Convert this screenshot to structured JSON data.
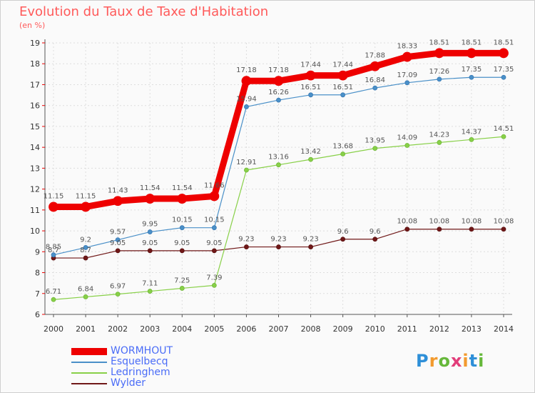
{
  "title": "Evolution du Taux de Taxe d'Habitation",
  "subtitle": "(en %)",
  "logo": {
    "text": "Proxiti",
    "colors": [
      "#2e8fd8",
      "#f29a2e",
      "#66b83b",
      "#e23d7a",
      "#f29a2e",
      "#2e8fd8",
      "#66b83b"
    ]
  },
  "chart_data": {
    "type": "line",
    "x": [
      "2000",
      "2001",
      "2002",
      "2003",
      "2004",
      "2005",
      "2006",
      "2007",
      "2008",
      "2009",
      "2010",
      "2011",
      "2012",
      "2013",
      "2014"
    ],
    "ylim": [
      6,
      19
    ],
    "yticks": [
      "6",
      "7",
      "8",
      "9",
      "10",
      "11",
      "12",
      "13",
      "14",
      "15",
      "16",
      "17",
      "18",
      "19"
    ],
    "grid": true,
    "legend_position": "bottom-left",
    "series": [
      {
        "name": "WORMHOUT",
        "color": "#ee0000",
        "values": [
          11.15,
          11.15,
          11.43,
          11.54,
          11.54,
          11.66,
          17.18,
          17.18,
          17.44,
          17.44,
          17.88,
          18.33,
          18.51,
          18.51,
          18.51
        ],
        "labels": [
          "11.15",
          "11.15",
          "11.43",
          "11.54",
          "11.54",
          "11.66",
          "17.18",
          "17.18",
          "17.44",
          "17.44",
          "17.88",
          "18.33",
          "18.51",
          "18.51",
          "18.51"
        ]
      },
      {
        "name": "Esquelbecq",
        "color": "#4a90c8",
        "values": [
          8.85,
          9.2,
          9.57,
          9.95,
          10.15,
          10.15,
          15.94,
          16.26,
          16.51,
          16.51,
          16.84,
          17.09,
          17.26,
          17.35,
          17.35
        ],
        "labels": [
          "8.85",
          "9.2",
          "9.57",
          "9.95",
          "10.15",
          "10.15",
          "15.94",
          "16.26",
          "16.51",
          "16.51",
          "16.84",
          "17.09",
          "17.26",
          "17.35",
          "17.35"
        ]
      },
      {
        "name": "Ledringhem",
        "color": "#88d048",
        "values": [
          6.71,
          6.84,
          6.97,
          7.11,
          7.25,
          7.39,
          12.91,
          13.16,
          13.42,
          13.68,
          13.95,
          14.09,
          14.23,
          14.37,
          14.51
        ],
        "labels": [
          "6.71",
          "6.84",
          "6.97",
          "7.11",
          "7.25",
          "7.39",
          "12.91",
          "13.16",
          "13.42",
          "13.68",
          "13.95",
          "14.09",
          "14.23",
          "14.37",
          "14.51"
        ]
      },
      {
        "name": "Wylder",
        "color": "#701818",
        "values": [
          8.7,
          8.7,
          9.05,
          9.05,
          9.05,
          9.05,
          9.23,
          9.23,
          9.23,
          9.6,
          9.6,
          10.08,
          10.08,
          10.08,
          10.08
        ],
        "labels": [
          "8.7",
          "8.7",
          "9.05",
          "9.05",
          "9.05",
          "9.05",
          "9.23",
          "9.23",
          "9.23",
          "9.6",
          "9.6",
          "10.08",
          "10.08",
          "10.08",
          "10.08"
        ]
      }
    ]
  }
}
